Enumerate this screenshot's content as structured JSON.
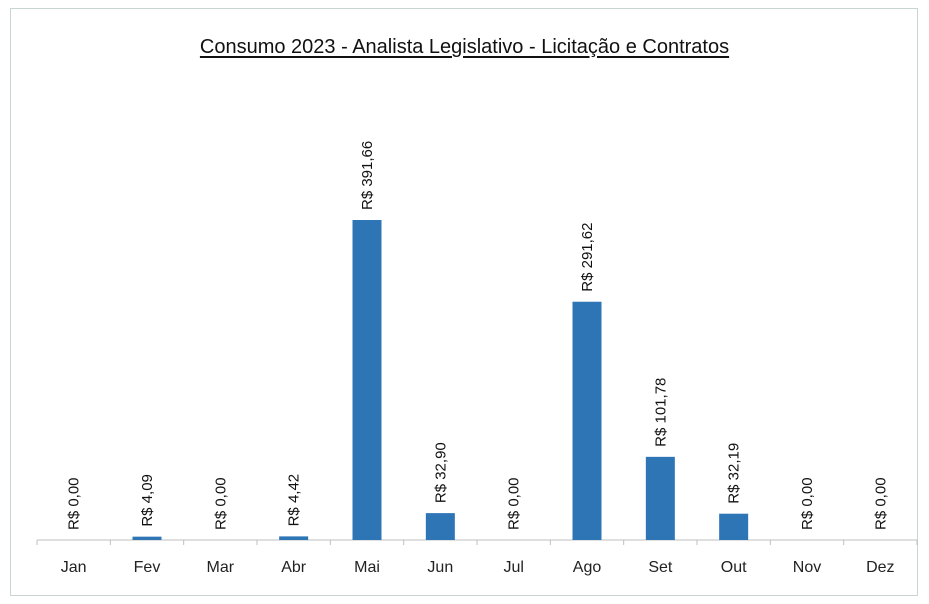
{
  "chart_data": {
    "type": "bar",
    "title": "Consumo 2023 - Analista Legislativo - Licitação e Contratos",
    "categories": [
      "Jan",
      "Fev",
      "Mar",
      "Abr",
      "Mai",
      "Jun",
      "Jul",
      "Ago",
      "Set",
      "Out",
      "Nov",
      "Dez"
    ],
    "values": [
      0.0,
      4.09,
      0.0,
      4.42,
      391.66,
      32.9,
      0.0,
      291.62,
      101.78,
      32.19,
      0.0,
      0.0
    ],
    "data_labels": [
      "R$ 0,00",
      "R$ 4,09",
      "R$ 0,00",
      "R$ 4,42",
      "R$ 391,66",
      "R$ 32,90",
      "R$ 0,00",
      "R$ 291,62",
      "R$ 101,78",
      "R$ 32,19",
      "R$ 0,00",
      "R$ 0,00"
    ],
    "xlabel": "",
    "ylabel": "",
    "ylim": [
      0,
      400
    ],
    "grid": false,
    "legend": "none",
    "bar_color": "#2e75b6"
  }
}
